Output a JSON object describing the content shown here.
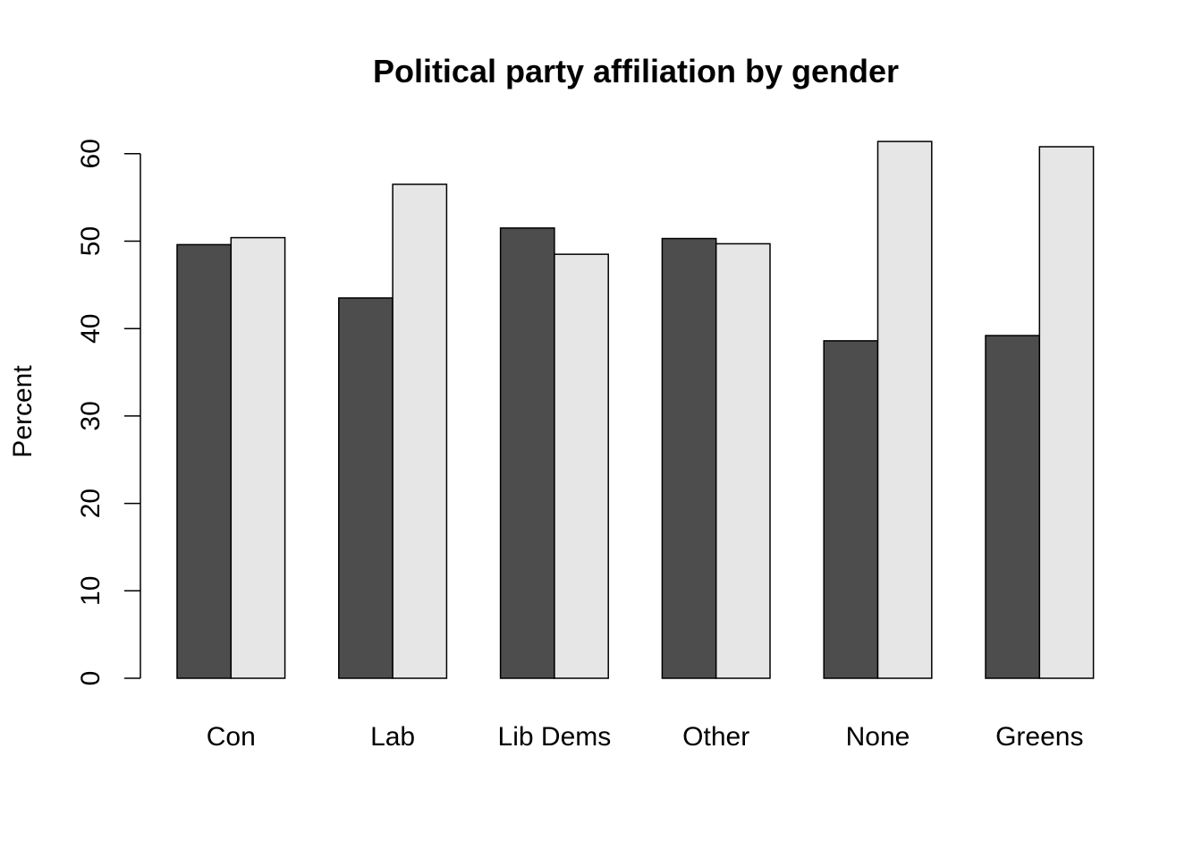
{
  "chart_data": {
    "type": "bar",
    "title": "Political party affiliation by gender",
    "xlabel": "",
    "ylabel": "Percent",
    "ylim": [
      0,
      62
    ],
    "yticks": [
      0,
      10,
      20,
      30,
      40,
      50,
      60
    ],
    "grid": false,
    "legend": "none",
    "categories": [
      "Con",
      "Lab",
      "Lib Dems",
      "Other",
      "None",
      "Greens"
    ],
    "series": [
      {
        "color": "#4d4d4d",
        "values": [
          49.6,
          43.5,
          51.5,
          50.3,
          38.6,
          39.2
        ]
      },
      {
        "color": "#e6e6e6",
        "values": [
          50.4,
          56.5,
          48.5,
          49.7,
          61.4,
          60.8
        ]
      }
    ]
  }
}
